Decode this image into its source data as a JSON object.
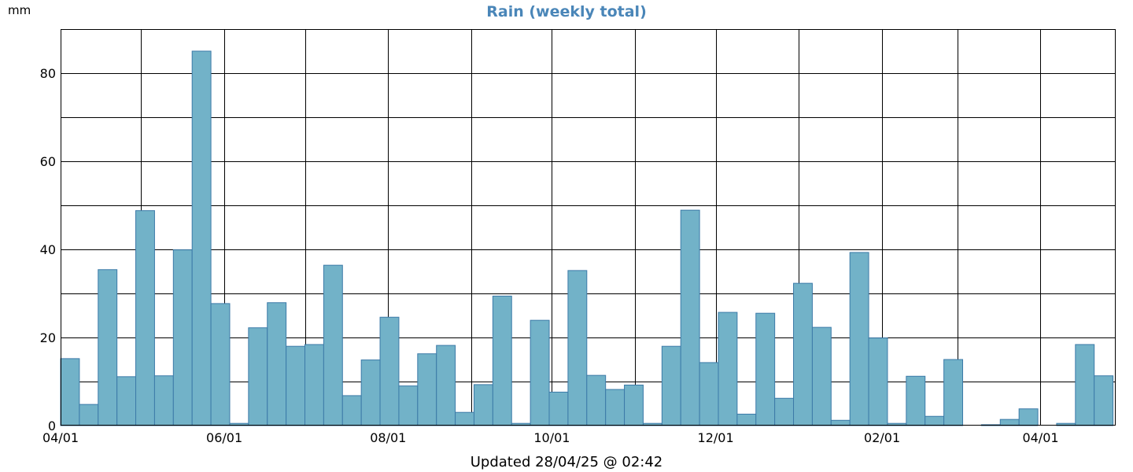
{
  "colors": {
    "title": "#4a86b8",
    "bar_fill": "#72b2c8",
    "bar_stroke": "#3c7aa8",
    "grid": "#000000",
    "axis": "#000000"
  },
  "footer": {
    "updated": "Updated 28/04/25 @ 02:42"
  },
  "chart_data": {
    "type": "bar",
    "title": "Rain (weekly total)",
    "ylabel": "mm",
    "ylim": [
      0,
      90
    ],
    "yticks": [
      0,
      20,
      40,
      60,
      80
    ],
    "grid": true,
    "x_range": [
      "2024-04-01",
      "2025-04-29"
    ],
    "x_ticks": [
      {
        "date": "2024-04-01",
        "label": "04/01"
      },
      {
        "date": "2024-05-01",
        "label": ""
      },
      {
        "date": "2024-06-01",
        "label": "06/01"
      },
      {
        "date": "2024-07-01",
        "label": ""
      },
      {
        "date": "2024-08-01",
        "label": "08/01"
      },
      {
        "date": "2024-09-01",
        "label": ""
      },
      {
        "date": "2024-10-01",
        "label": "10/01"
      },
      {
        "date": "2024-11-01",
        "label": ""
      },
      {
        "date": "2024-12-01",
        "label": "12/01"
      },
      {
        "date": "2025-01-01",
        "label": ""
      },
      {
        "date": "2025-02-01",
        "label": "02/01"
      },
      {
        "date": "2025-03-01",
        "label": ""
      },
      {
        "date": "2025-04-01",
        "label": "04/01"
      }
    ],
    "series": [
      {
        "x": [
          "2024-04-01",
          "2024-04-08",
          "2024-04-15",
          "2024-04-22",
          "2024-04-29",
          "2024-05-06",
          "2024-05-13",
          "2024-05-20",
          "2024-05-27",
          "2024-06-03",
          "2024-06-10",
          "2024-06-17",
          "2024-06-24",
          "2024-07-01",
          "2024-07-08",
          "2024-07-15",
          "2024-07-22",
          "2024-07-29",
          "2024-08-05",
          "2024-08-12",
          "2024-08-19",
          "2024-08-26",
          "2024-09-02",
          "2024-09-09",
          "2024-09-16",
          "2024-09-23",
          "2024-09-30",
          "2024-10-07",
          "2024-10-14",
          "2024-10-21",
          "2024-10-28",
          "2024-11-04",
          "2024-11-11",
          "2024-11-18",
          "2024-11-25",
          "2024-12-02",
          "2024-12-09",
          "2024-12-16",
          "2024-12-23",
          "2024-12-30",
          "2025-01-06",
          "2025-01-13",
          "2025-01-20",
          "2025-01-27",
          "2025-02-03",
          "2025-02-10",
          "2025-02-17",
          "2025-02-24",
          "2025-03-03",
          "2025-03-10",
          "2025-03-17",
          "2025-03-24",
          "2025-03-31",
          "2025-04-07",
          "2025-04-14",
          "2025-04-21"
        ],
        "values": [
          15.2,
          4.8,
          35.4,
          11.1,
          48.8,
          11.3,
          39.9,
          85.0,
          27.7,
          0.5,
          22.2,
          27.9,
          18.0,
          18.4,
          36.4,
          6.8,
          14.9,
          24.6,
          9.0,
          16.3,
          18.2,
          3.0,
          9.3,
          29.4,
          0.5,
          23.9,
          7.6,
          35.2,
          11.4,
          8.2,
          9.2,
          0.5,
          18.0,
          48.9,
          14.3,
          25.7,
          2.6,
          25.5,
          6.2,
          32.3,
          22.3,
          1.2,
          39.3,
          19.9,
          0.5,
          11.2,
          2.1,
          15.0,
          0.0,
          0.2,
          1.4,
          3.8,
          0.0,
          0.5,
          18.4,
          11.3
        ]
      }
    ]
  }
}
